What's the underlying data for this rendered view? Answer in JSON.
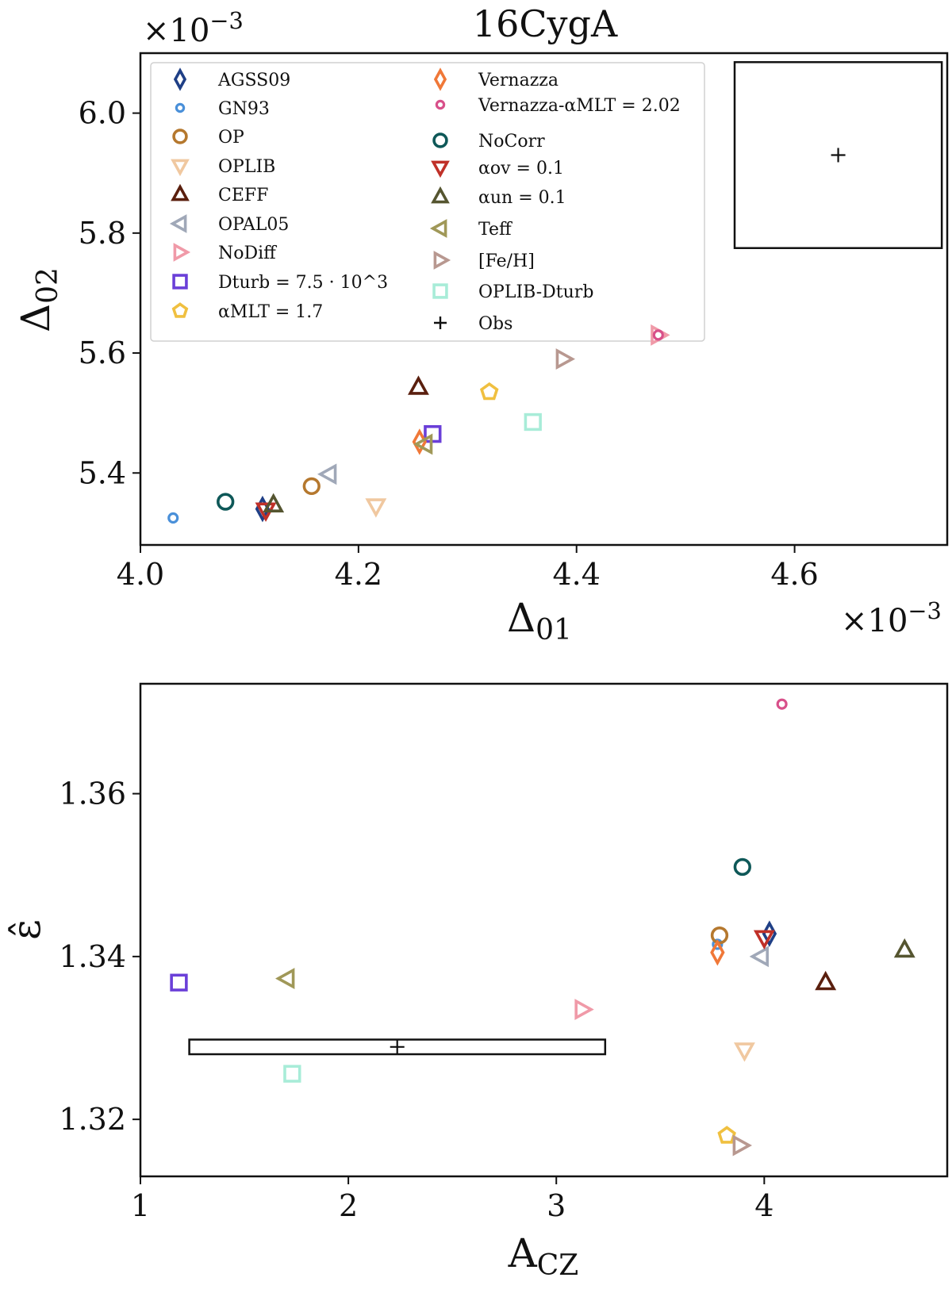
{
  "chart_data": [
    {
      "type": "scatter",
      "title": "16CygA",
      "xlabel": "Δ01",
      "ylabel": "Δ02",
      "x_multiplier": "×10−3",
      "y_multiplier": "×10−3",
      "xlim": [
        4.0,
        4.74
      ],
      "ylim": [
        5.28,
        6.1
      ],
      "x_ticks": [
        "4.0",
        "4.2",
        "4.4",
        "4.6"
      ],
      "y_ticks": [
        "5.4",
        "5.6",
        "5.8",
        "6.0"
      ],
      "legend_location": "upper-left",
      "series": [
        {
          "name": "AGSS09",
          "marker": "diamond",
          "color": "#1f3f86",
          "x": 4.112,
          "y": 5.34
        },
        {
          "name": "GN93",
          "marker": "dot",
          "color": "#4a90d9",
          "x": 4.03,
          "y": 5.325
        },
        {
          "name": "OP",
          "marker": "circle",
          "color": "#b5782e",
          "x": 4.157,
          "y": 5.378
        },
        {
          "name": "OPLIB",
          "marker": "tri-down",
          "color": "#f0c8a0",
          "x": 4.216,
          "y": 5.345
        },
        {
          "name": "CEFF",
          "marker": "tri-up",
          "color": "#5a1f0e",
          "x": 4.255,
          "y": 5.543
        },
        {
          "name": "OPAL05",
          "marker": "tri-left",
          "color": "#a0a8b8",
          "x": 4.173,
          "y": 5.398
        },
        {
          "name": "NoDiff",
          "marker": "tri-right",
          "color": "#f09aa8",
          "x": 4.475,
          "y": 5.63
        },
        {
          "name": "Dturb = 7.5 · 10^3",
          "marker": "square",
          "color": "#6a3fd8",
          "x": 4.268,
          "y": 5.465
        },
        {
          "name": "αMLT = 1.7",
          "marker": "pentagon",
          "color": "#f0c040",
          "x": 4.32,
          "y": 5.535
        },
        {
          "name": "Vernazza",
          "marker": "diamond",
          "color": "#f07838",
          "x": 4.256,
          "y": 5.452
        },
        {
          "name": "Vernazza-αMLT = 2.02",
          "marker": "dot",
          "color": "#d8508a",
          "x": 4.475,
          "y": 5.63
        },
        {
          "name": "NoCorr",
          "marker": "circle",
          "color": "#0e5858",
          "x": 4.078,
          "y": 5.352
        },
        {
          "name": "αov = 0.1",
          "marker": "tri-down",
          "color": "#c03028",
          "x": 4.115,
          "y": 5.338
        },
        {
          "name": "αun = 0.1",
          "marker": "tri-up",
          "color": "#555530",
          "x": 4.122,
          "y": 5.347
        },
        {
          "name": "Teff",
          "marker": "tri-left",
          "color": "#a09858",
          "x": 4.261,
          "y": 5.448
        },
        {
          "name": "[Fe/H]",
          "marker": "tri-right",
          "color": "#b89890",
          "x": 4.388,
          "y": 5.59
        },
        {
          "name": "OPLIB-Dturb",
          "marker": "square",
          "color": "#a8ecd8",
          "x": 4.36,
          "y": 5.485
        }
      ],
      "observation": {
        "name": "Obs",
        "x": 4.64,
        "y": 5.93,
        "xerr": 0.095,
        "yerr": 0.155
      }
    },
    {
      "type": "scatter",
      "xlabel": "ACZ",
      "ylabel": "ε̂",
      "xlim": [
        1.0,
        4.88
      ],
      "ylim": [
        1.313,
        1.3735
      ],
      "x_ticks": [
        "1",
        "2",
        "3",
        "4"
      ],
      "y_ticks": [
        "1.32",
        "1.34",
        "1.36"
      ],
      "series": [
        {
          "name": "AGSS09",
          "marker": "diamond",
          "color": "#1f3f86",
          "x": 4.025,
          "y": 1.3428
        },
        {
          "name": "GN93",
          "marker": "dot",
          "color": "#4a90d9",
          "x": 3.775,
          "y": 1.3415
        },
        {
          "name": "OP",
          "marker": "circle",
          "color": "#b5782e",
          "x": 3.785,
          "y": 1.3426
        },
        {
          "name": "OPLIB",
          "marker": "tri-down",
          "color": "#f0c8a0",
          "x": 3.905,
          "y": 1.3285
        },
        {
          "name": "CEFF",
          "marker": "tri-up",
          "color": "#5a1f0e",
          "x": 4.295,
          "y": 1.3368
        },
        {
          "name": "OPAL05",
          "marker": "tri-left",
          "color": "#a0a8b8",
          "x": 3.985,
          "y": 1.34
        },
        {
          "name": "NoDiff",
          "marker": "tri-right",
          "color": "#f09aa8",
          "x": 3.125,
          "y": 1.3335
        },
        {
          "name": "Dturb = 7.5 · 10^3",
          "marker": "square",
          "color": "#6a3fd8",
          "x": 1.185,
          "y": 1.3368
        },
        {
          "name": "αMLT = 1.7",
          "marker": "pentagon",
          "color": "#f0c040",
          "x": 3.82,
          "y": 1.318
        },
        {
          "name": "Vernazza",
          "marker": "diamond",
          "color": "#f07838",
          "x": 3.775,
          "y": 1.3405
        },
        {
          "name": "Vernazza-αMLT = 2.02",
          "marker": "dot",
          "color": "#d8508a",
          "x": 4.085,
          "y": 1.371
        },
        {
          "name": "NoCorr",
          "marker": "circle",
          "color": "#0e5858",
          "x": 3.895,
          "y": 1.351
        },
        {
          "name": "αov = 0.1",
          "marker": "tri-down",
          "color": "#c03028",
          "x": 4.0,
          "y": 1.3423
        },
        {
          "name": "αun = 0.1",
          "marker": "tri-up",
          "color": "#555530",
          "x": 4.675,
          "y": 1.3408
        },
        {
          "name": "Teff",
          "marker": "tri-left",
          "color": "#a09858",
          "x": 1.705,
          "y": 1.3373
        },
        {
          "name": "[Fe/H]",
          "marker": "tri-right",
          "color": "#b89890",
          "x": 3.885,
          "y": 1.3168
        },
        {
          "name": "OPLIB-Dturb",
          "marker": "square",
          "color": "#a8ecd8",
          "x": 1.73,
          "y": 1.3256
        }
      ],
      "observation": {
        "name": "Obs",
        "x": 2.235,
        "y": 1.3289,
        "xerr": 1.0,
        "yerr": 0.0009
      }
    }
  ]
}
